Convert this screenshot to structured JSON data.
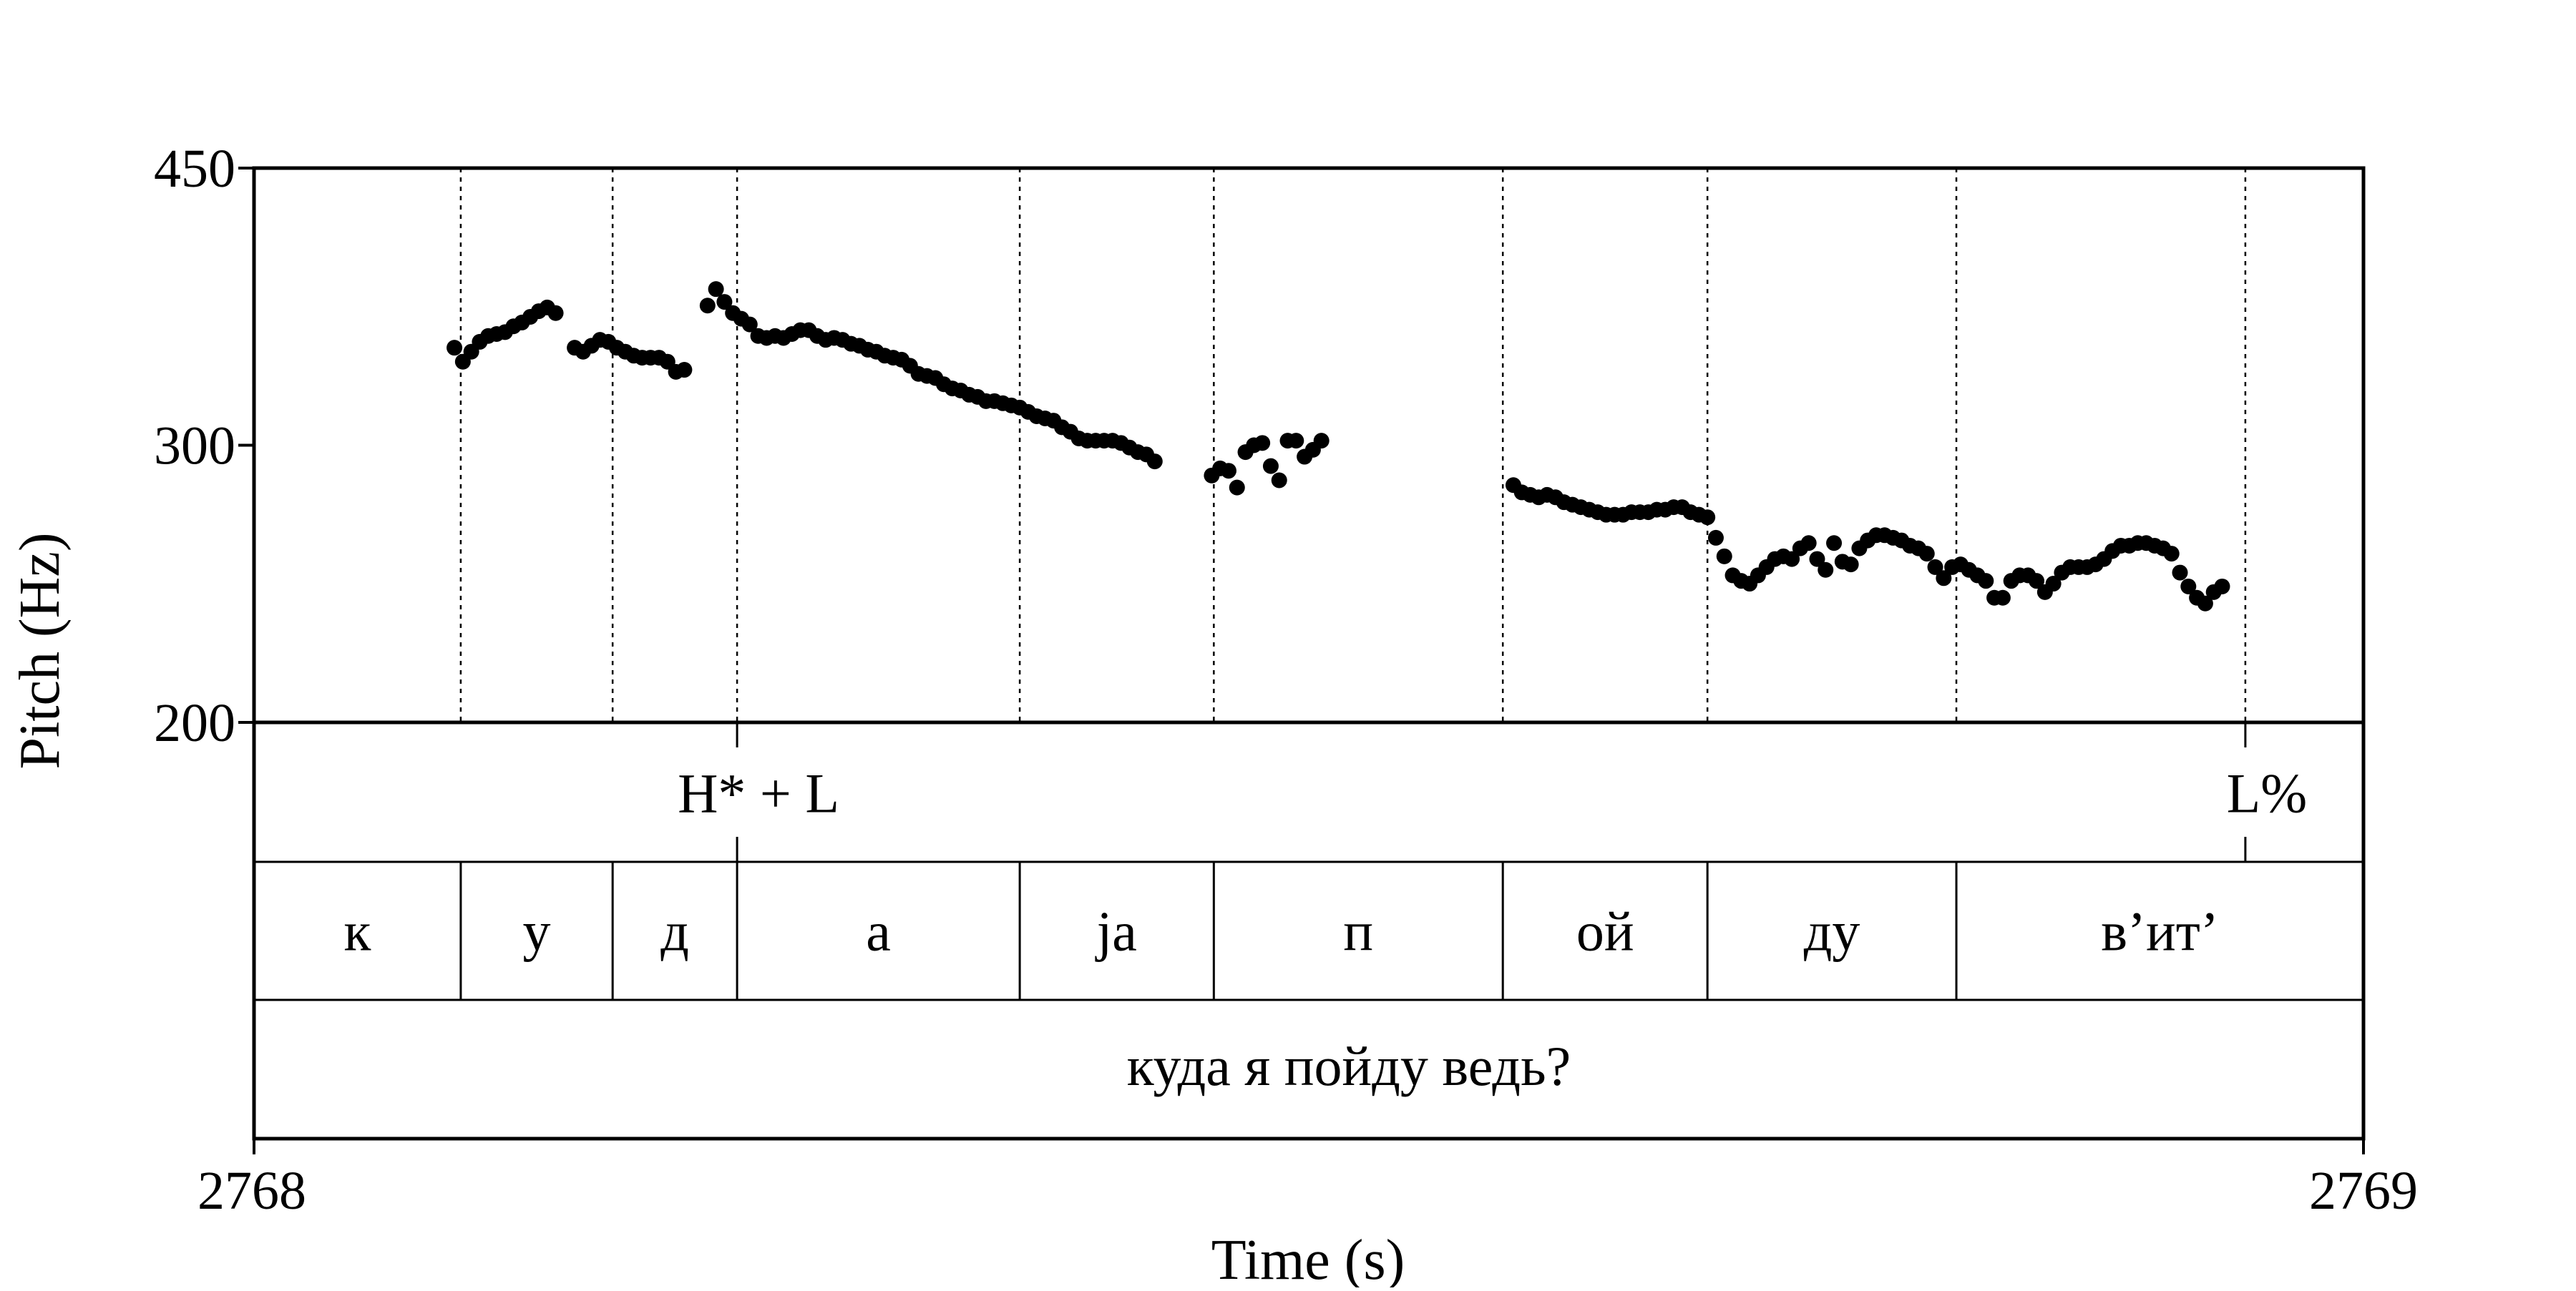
{
  "chart_data": {
    "type": "scatter",
    "xlabel": "Time (s)",
    "ylabel": "Pitch (Hz)",
    "xlim": [
      2768,
      2769
    ],
    "ylim": [
      200,
      450
    ],
    "x_tick_labels": [
      "2768",
      "2769"
    ],
    "y_tick_labels": [
      "450",
      "300",
      "200"
    ],
    "y_ticks": [
      450,
      300,
      200
    ],
    "y_scale": "log",
    "boundaries": [
      2768.098,
      2768.17,
      2768.229,
      2768.363,
      2768.455,
      2768.592,
      2768.689,
      2768.807,
      2768.944
    ],
    "tones": [
      {
        "label": "H* + L",
        "time": 2768.229
      },
      {
        "label": "L%",
        "time": 2768.944
      }
    ],
    "segments": [
      {
        "label": "к",
        "start": 2768.0,
        "end": 2768.098
      },
      {
        "label": "у",
        "start": 2768.098,
        "end": 2768.17
      },
      {
        "label": "д",
        "start": 2768.17,
        "end": 2768.229
      },
      {
        "label": "а",
        "start": 2768.229,
        "end": 2768.363
      },
      {
        "label": "ja",
        "start": 2768.363,
        "end": 2768.455
      },
      {
        "label": "п",
        "start": 2768.455,
        "end": 2768.592
      },
      {
        "label": "ой",
        "start": 2768.592,
        "end": 2768.689
      },
      {
        "label": "ду",
        "start": 2768.689,
        "end": 2768.807
      },
      {
        "label": "в’ит’",
        "start": 2768.807,
        "end": 2769.0
      }
    ],
    "sentence": "куда я пойду ведь?",
    "series": [
      {
        "values": [
          [
            2768.095,
            346
          ],
          [
            2768.099,
            339
          ],
          [
            2768.103,
            344
          ],
          [
            2768.107,
            349
          ],
          [
            2768.111,
            352
          ],
          [
            2768.115,
            353
          ],
          [
            2768.119,
            354
          ],
          [
            2768.123,
            357
          ],
          [
            2768.127,
            359
          ],
          [
            2768.131,
            362
          ],
          [
            2768.135,
            365
          ],
          [
            2768.139,
            367
          ],
          [
            2768.143,
            364
          ],
          [
            2768.152,
            346
          ],
          [
            2768.156,
            344
          ],
          [
            2768.16,
            347
          ],
          [
            2768.164,
            350
          ],
          [
            2768.168,
            349
          ],
          [
            2768.172,
            346
          ],
          [
            2768.176,
            344
          ],
          [
            2768.18,
            342
          ],
          [
            2768.184,
            341
          ],
          [
            2768.188,
            341
          ],
          [
            2768.192,
            341
          ],
          [
            2768.196,
            339
          ],
          [
            2768.2,
            334
          ],
          [
            2768.204,
            335
          ],
          [
            2768.215,
            368
          ],
          [
            2768.219,
            377
          ],
          [
            2768.223,
            370
          ],
          [
            2768.227,
            364
          ],
          [
            2768.231,
            361
          ],
          [
            2768.235,
            358
          ],
          [
            2768.239,
            352
          ],
          [
            2768.243,
            351
          ],
          [
            2768.247,
            352
          ],
          [
            2768.251,
            351
          ],
          [
            2768.255,
            353
          ],
          [
            2768.259,
            355
          ],
          [
            2768.263,
            355
          ],
          [
            2768.267,
            352
          ],
          [
            2768.271,
            350
          ],
          [
            2768.275,
            351
          ],
          [
            2768.279,
            350
          ],
          [
            2768.283,
            348
          ],
          [
            2768.287,
            347
          ],
          [
            2768.291,
            345
          ],
          [
            2768.295,
            344
          ],
          [
            2768.299,
            342
          ],
          [
            2768.303,
            341
          ],
          [
            2768.307,
            340
          ],
          [
            2768.311,
            337
          ],
          [
            2768.315,
            333
          ],
          [
            2768.319,
            332
          ],
          [
            2768.323,
            331
          ],
          [
            2768.327,
            328
          ],
          [
            2768.331,
            326
          ],
          [
            2768.335,
            325
          ],
          [
            2768.339,
            323
          ],
          [
            2768.343,
            322
          ],
          [
            2768.347,
            320
          ],
          [
            2768.351,
            320
          ],
          [
            2768.355,
            319
          ],
          [
            2768.359,
            318
          ],
          [
            2768.363,
            317
          ],
          [
            2768.367,
            315
          ],
          [
            2768.371,
            313
          ],
          [
            2768.375,
            312
          ],
          [
            2768.379,
            311
          ],
          [
            2768.383,
            308
          ],
          [
            2768.387,
            306
          ],
          [
            2768.391,
            303
          ],
          [
            2768.395,
            302
          ],
          [
            2768.399,
            302
          ],
          [
            2768.403,
            302
          ],
          [
            2768.407,
            302
          ],
          [
            2768.411,
            301
          ],
          [
            2768.415,
            299
          ],
          [
            2768.419,
            297
          ],
          [
            2768.423,
            296
          ],
          [
            2768.427,
            293
          ],
          [
            2768.454,
            287
          ],
          [
            2768.458,
            290
          ],
          [
            2768.462,
            289
          ],
          [
            2768.466,
            282
          ],
          [
            2768.47,
            297
          ],
          [
            2768.474,
            300
          ],
          [
            2768.478,
            301
          ],
          [
            2768.482,
            291
          ],
          [
            2768.486,
            285
          ],
          [
            2768.49,
            302
          ],
          [
            2768.494,
            302
          ],
          [
            2768.498,
            295
          ],
          [
            2768.502,
            298
          ],
          [
            2768.506,
            302
          ],
          [
            2768.597,
            283
          ],
          [
            2768.601,
            280
          ],
          [
            2768.605,
            279
          ],
          [
            2768.609,
            278
          ],
          [
            2768.613,
            279
          ],
          [
            2768.617,
            278
          ],
          [
            2768.621,
            276
          ],
          [
            2768.625,
            275
          ],
          [
            2768.629,
            274
          ],
          [
            2768.633,
            273
          ],
          [
            2768.637,
            272
          ],
          [
            2768.641,
            271
          ],
          [
            2768.645,
            271
          ],
          [
            2768.649,
            271
          ],
          [
            2768.653,
            272
          ],
          [
            2768.657,
            272
          ],
          [
            2768.661,
            272
          ],
          [
            2768.665,
            273
          ],
          [
            2768.669,
            273
          ],
          [
            2768.673,
            274
          ],
          [
            2768.677,
            274
          ],
          [
            2768.681,
            272
          ],
          [
            2768.685,
            271
          ],
          [
            2768.689,
            270
          ],
          [
            2768.693,
            262
          ],
          [
            2768.697,
            255
          ],
          [
            2768.701,
            248
          ],
          [
            2768.705,
            246
          ],
          [
            2768.709,
            245
          ],
          [
            2768.713,
            248
          ],
          [
            2768.717,
            251
          ],
          [
            2768.721,
            254
          ],
          [
            2768.725,
            255
          ],
          [
            2768.729,
            254
          ],
          [
            2768.733,
            258
          ],
          [
            2768.737,
            260
          ],
          [
            2768.741,
            254
          ],
          [
            2768.745,
            250
          ],
          [
            2768.749,
            260
          ],
          [
            2768.753,
            253
          ],
          [
            2768.757,
            252
          ],
          [
            2768.761,
            258
          ],
          [
            2768.765,
            261
          ],
          [
            2768.769,
            263
          ],
          [
            2768.773,
            263
          ],
          [
            2768.777,
            262
          ],
          [
            2768.781,
            261
          ],
          [
            2768.785,
            259
          ],
          [
            2768.789,
            258
          ],
          [
            2768.793,
            256
          ],
          [
            2768.797,
            251
          ],
          [
            2768.801,
            247
          ],
          [
            2768.805,
            251
          ],
          [
            2768.809,
            252
          ],
          [
            2768.813,
            250
          ],
          [
            2768.817,
            248
          ],
          [
            2768.821,
            246
          ],
          [
            2768.825,
            240
          ],
          [
            2768.829,
            240
          ],
          [
            2768.833,
            246
          ],
          [
            2768.837,
            248
          ],
          [
            2768.841,
            248
          ],
          [
            2768.845,
            246
          ],
          [
            2768.849,
            242
          ],
          [
            2768.853,
            245
          ],
          [
            2768.857,
            249
          ],
          [
            2768.861,
            251
          ],
          [
            2768.865,
            251
          ],
          [
            2768.869,
            251
          ],
          [
            2768.873,
            252
          ],
          [
            2768.877,
            254
          ],
          [
            2768.881,
            257
          ],
          [
            2768.885,
            259
          ],
          [
            2768.889,
            259
          ],
          [
            2768.893,
            260
          ],
          [
            2768.897,
            260
          ],
          [
            2768.901,
            259
          ],
          [
            2768.905,
            258
          ],
          [
            2768.909,
            256
          ],
          [
            2768.913,
            249
          ],
          [
            2768.917,
            244
          ],
          [
            2768.921,
            240
          ],
          [
            2768.925,
            238
          ],
          [
            2768.929,
            242
          ],
          [
            2768.933,
            244
          ]
        ]
      }
    ]
  }
}
